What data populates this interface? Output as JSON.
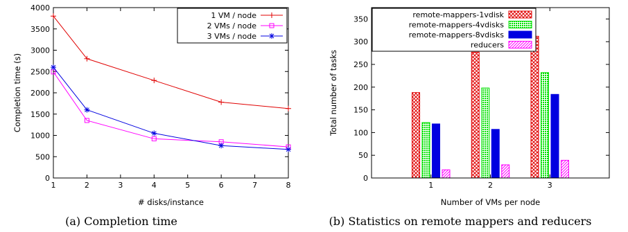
{
  "chart_data": [
    {
      "type": "line",
      "xlabel": "# disks/instance",
      "ylabel": "Completion time (s)",
      "xlim": [
        1,
        8
      ],
      "ylim": [
        0,
        4000
      ],
      "xticks": [
        1,
        2,
        3,
        4,
        5,
        6,
        7,
        8
      ],
      "yticks": [
        0,
        500,
        1000,
        1500,
        2000,
        2500,
        3000,
        3500,
        4000
      ],
      "grid": false,
      "legend": "top-right",
      "caption": "(a) Completion time",
      "series": [
        {
          "name": "1 VM / node",
          "color": "#e00000",
          "marker": "plus",
          "x": [
            1,
            2,
            4,
            6,
            8
          ],
          "y": [
            3800,
            2800,
            2290,
            1780,
            1630
          ]
        },
        {
          "name": "2 VMs / node",
          "color": "#ff00ff",
          "marker": "square",
          "x": [
            1,
            2,
            4,
            6,
            8
          ],
          "y": [
            2490,
            1350,
            920,
            850,
            730
          ]
        },
        {
          "name": "3 VMs / node",
          "color": "#0000e0",
          "marker": "star",
          "x": [
            1,
            2,
            4,
            6,
            8
          ],
          "y": [
            2600,
            1600,
            1050,
            760,
            670
          ]
        }
      ]
    },
    {
      "type": "bar",
      "xlabel": "Number of VMs per node",
      "ylabel": "Total number of tasks",
      "categories": [
        "1",
        "2",
        "3"
      ],
      "ylim": [
        0,
        375
      ],
      "yticks": [
        0,
        50,
        100,
        150,
        200,
        250,
        300,
        350
      ],
      "grid": false,
      "legend": "top-left",
      "caption": "(b) Statistics on remote mappers and reducers",
      "series": [
        {
          "name": "remote-mappers-1vdisk",
          "color": "#e00000",
          "pattern": "crosshatch",
          "values": [
            188,
            277,
            312
          ]
        },
        {
          "name": "remote-mappers-4vdisks",
          "color": "#00e000",
          "pattern": "dots",
          "values": [
            122,
            198,
            232
          ]
        },
        {
          "name": "remote-mappers-8vdisks",
          "color": "#0000e0",
          "pattern": "solid",
          "values": [
            119,
            107,
            184
          ]
        },
        {
          "name": "reducers",
          "color": "#ff00ff",
          "pattern": "diagonal",
          "values": [
            18,
            29,
            39
          ]
        }
      ]
    }
  ]
}
